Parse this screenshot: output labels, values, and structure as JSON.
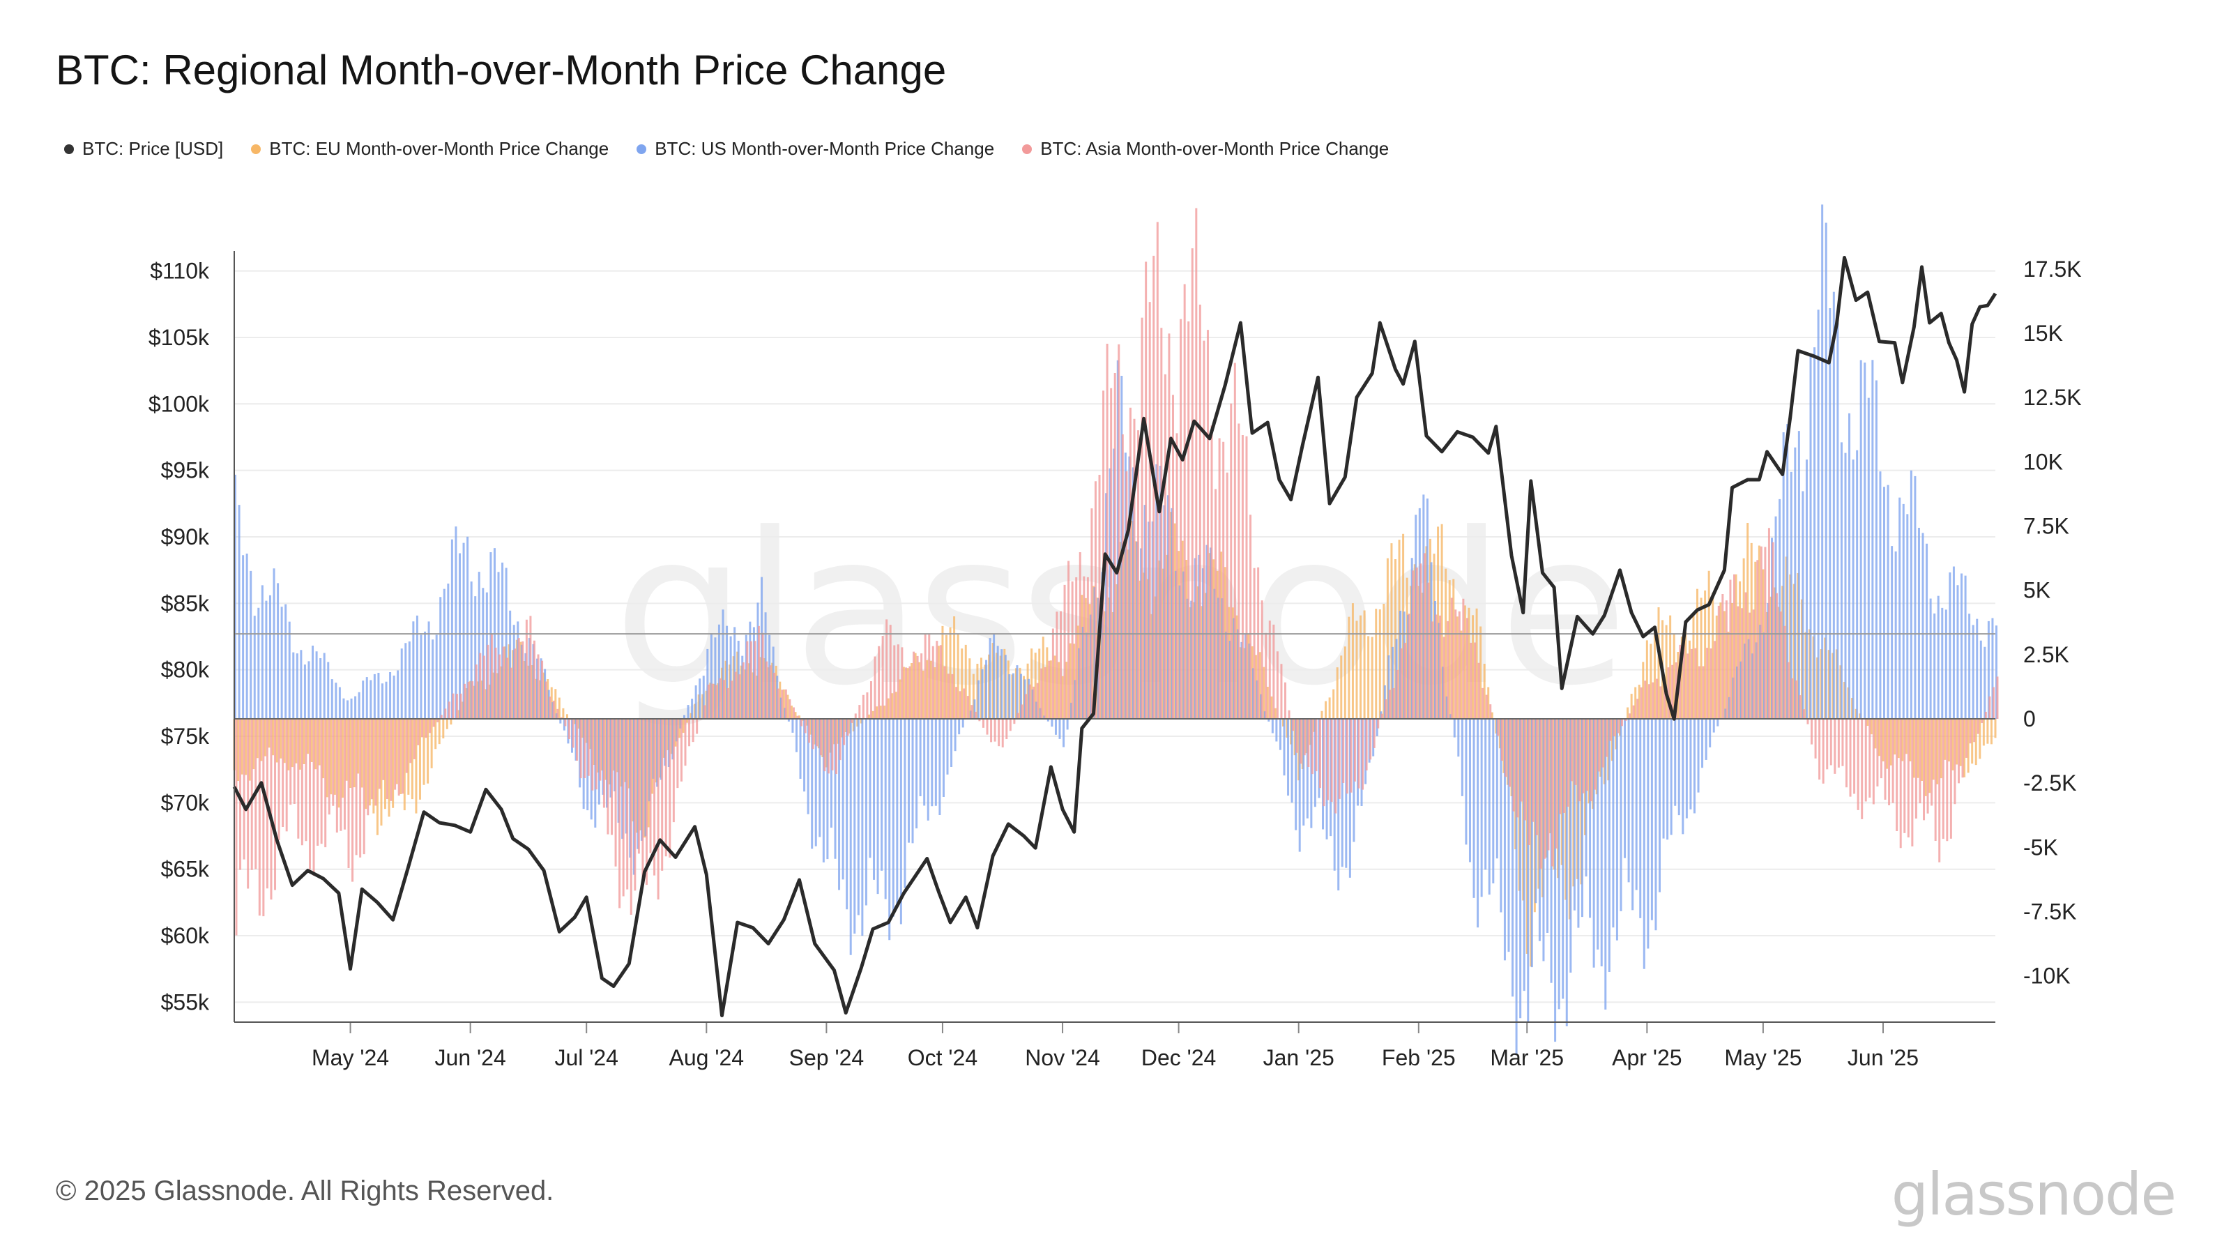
{
  "title": "BTC: Regional Month-over-Month Price Change",
  "legend": [
    {
      "label": "BTC: Price [USD]",
      "color": "#333333"
    },
    {
      "label": "BTC: EU Month-over-Month Price Change",
      "color": "#f7b766"
    },
    {
      "label": "BTC: US Month-over-Month Price Change",
      "color": "#7fa5ef"
    },
    {
      "label": "BTC: Asia Month-over-Month Price Change",
      "color": "#f29a9a"
    }
  ],
  "footer": "© 2025 Glassnode. All Rights Reserved.",
  "brand": "glassnode",
  "watermark": "glassnode",
  "chart_data": {
    "type": "line",
    "x_start": "2024-04-01",
    "x_end": "2025-06-30",
    "xticks": [
      {
        "date": "2024-05-01",
        "label": "May '24"
      },
      {
        "date": "2024-06-01",
        "label": "Jun '24"
      },
      {
        "date": "2024-07-01",
        "label": "Jul '24"
      },
      {
        "date": "2024-08-01",
        "label": "Aug '24"
      },
      {
        "date": "2024-09-01",
        "label": "Sep '24"
      },
      {
        "date": "2024-10-01",
        "label": "Oct '24"
      },
      {
        "date": "2024-11-01",
        "label": "Nov '24"
      },
      {
        "date": "2024-12-01",
        "label": "Dec '24"
      },
      {
        "date": "2025-01-01",
        "label": "Jan '25"
      },
      {
        "date": "2025-02-01",
        "label": "Feb '25"
      },
      {
        "date": "2025-03-01",
        "label": "Mar '25"
      },
      {
        "date": "2025-04-01",
        "label": "Apr '25"
      },
      {
        "date": "2025-05-01",
        "label": "May '25"
      },
      {
        "date": "2025-06-01",
        "label": "Jun '25"
      }
    ],
    "y_left": {
      "ticks": [
        55000,
        60000,
        65000,
        70000,
        75000,
        80000,
        85000,
        90000,
        95000,
        100000,
        105000,
        110000
      ],
      "labels": [
        "$55k",
        "$60k",
        "$65k",
        "$70k",
        "$75k",
        "$80k",
        "$85k",
        "$90k",
        "$95k",
        "$100k",
        "$105k",
        "$110k"
      ],
      "ylim": [
        53500,
        111500
      ]
    },
    "y_right": {
      "ticks": [
        -10000,
        -7500,
        -5000,
        -2500,
        0,
        2500,
        5000,
        7500,
        10000,
        12500,
        15000,
        17500
      ],
      "labels": [
        "-10K",
        "-7.5K",
        "-5K",
        "-2.5K",
        "0",
        "2.5K",
        "5K",
        "7.5K",
        "10K",
        "12.5K",
        "15K",
        "17.5K"
      ],
      "ylim": [
        -11800,
        18200
      ]
    },
    "reference_line_left": 82700,
    "price": [
      [
        "2024-04-01",
        71200
      ],
      [
        "2024-04-04",
        69500
      ],
      [
        "2024-04-08",
        71500
      ],
      [
        "2024-04-12",
        67200
      ],
      [
        "2024-04-16",
        63800
      ],
      [
        "2024-04-20",
        64900
      ],
      [
        "2024-04-24",
        64300
      ],
      [
        "2024-04-28",
        63200
      ],
      [
        "2024-05-01",
        57500
      ],
      [
        "2024-05-04",
        63500
      ],
      [
        "2024-05-08",
        62500
      ],
      [
        "2024-05-12",
        61200
      ],
      [
        "2024-05-16",
        65200
      ],
      [
        "2024-05-20",
        69300
      ],
      [
        "2024-05-24",
        68500
      ],
      [
        "2024-05-28",
        68300
      ],
      [
        "2024-06-01",
        67800
      ],
      [
        "2024-06-05",
        71000
      ],
      [
        "2024-06-09",
        69500
      ],
      [
        "2024-06-12",
        67300
      ],
      [
        "2024-06-16",
        66500
      ],
      [
        "2024-06-20",
        64900
      ],
      [
        "2024-06-24",
        60300
      ],
      [
        "2024-06-28",
        61400
      ],
      [
        "2024-07-01",
        62900
      ],
      [
        "2024-07-05",
        56800
      ],
      [
        "2024-07-08",
        56200
      ],
      [
        "2024-07-12",
        57900
      ],
      [
        "2024-07-16",
        64800
      ],
      [
        "2024-07-20",
        67200
      ],
      [
        "2024-07-24",
        65900
      ],
      [
        "2024-07-29",
        68200
      ],
      [
        "2024-08-01",
        64600
      ],
      [
        "2024-08-05",
        54000
      ],
      [
        "2024-08-09",
        61000
      ],
      [
        "2024-08-13",
        60600
      ],
      [
        "2024-08-17",
        59400
      ],
      [
        "2024-08-21",
        61200
      ],
      [
        "2024-08-25",
        64200
      ],
      [
        "2024-08-29",
        59400
      ],
      [
        "2024-09-03",
        57400
      ],
      [
        "2024-09-06",
        54200
      ],
      [
        "2024-09-10",
        57600
      ],
      [
        "2024-09-13",
        60500
      ],
      [
        "2024-09-17",
        61000
      ],
      [
        "2024-09-21",
        63200
      ],
      [
        "2024-09-27",
        65800
      ],
      [
        "2024-09-30",
        63300
      ],
      [
        "2024-10-03",
        61000
      ],
      [
        "2024-10-07",
        62900
      ],
      [
        "2024-10-10",
        60600
      ],
      [
        "2024-10-14",
        66000
      ],
      [
        "2024-10-18",
        68400
      ],
      [
        "2024-10-22",
        67500
      ],
      [
        "2024-10-25",
        66600
      ],
      [
        "2024-10-29",
        72700
      ],
      [
        "2024-11-01",
        69500
      ],
      [
        "2024-11-04",
        67800
      ],
      [
        "2024-11-06",
        75600
      ],
      [
        "2024-11-09",
        76700
      ],
      [
        "2024-11-12",
        88700
      ],
      [
        "2024-11-15",
        87300
      ],
      [
        "2024-11-18",
        90500
      ],
      [
        "2024-11-22",
        98900
      ],
      [
        "2024-11-26",
        91900
      ],
      [
        "2024-11-29",
        97400
      ],
      [
        "2024-12-02",
        95800
      ],
      [
        "2024-12-05",
        98700
      ],
      [
        "2024-12-09",
        97400
      ],
      [
        "2024-12-13",
        101400
      ],
      [
        "2024-12-17",
        106100
      ],
      [
        "2024-12-20",
        97800
      ],
      [
        "2024-12-24",
        98600
      ],
      [
        "2024-12-27",
        94300
      ],
      [
        "2024-12-30",
        92800
      ],
      [
        "2025-01-02",
        96900
      ],
      [
        "2025-01-06",
        102000
      ],
      [
        "2025-01-09",
        92500
      ],
      [
        "2025-01-13",
        94500
      ],
      [
        "2025-01-16",
        100500
      ],
      [
        "2025-01-20",
        102300
      ],
      [
        "2025-01-22",
        106100
      ],
      [
        "2025-01-26",
        102600
      ],
      [
        "2025-01-28",
        101500
      ],
      [
        "2025-01-31",
        104700
      ],
      [
        "2025-02-03",
        97600
      ],
      [
        "2025-02-07",
        96400
      ],
      [
        "2025-02-11",
        97900
      ],
      [
        "2025-02-15",
        97500
      ],
      [
        "2025-02-19",
        96300
      ],
      [
        "2025-02-21",
        98300
      ],
      [
        "2025-02-25",
        88600
      ],
      [
        "2025-02-28",
        84300
      ],
      [
        "2025-03-02",
        94200
      ],
      [
        "2025-03-05",
        87300
      ],
      [
        "2025-03-08",
        86200
      ],
      [
        "2025-03-10",
        78600
      ],
      [
        "2025-03-14",
        84000
      ],
      [
        "2025-03-18",
        82700
      ],
      [
        "2025-03-21",
        84100
      ],
      [
        "2025-03-25",
        87500
      ],
      [
        "2025-03-28",
        84300
      ],
      [
        "2025-03-31",
        82500
      ],
      [
        "2025-04-03",
        83200
      ],
      [
        "2025-04-06",
        78200
      ],
      [
        "2025-04-08",
        76300
      ],
      [
        "2025-04-11",
        83600
      ],
      [
        "2025-04-14",
        84500
      ],
      [
        "2025-04-17",
        84900
      ],
      [
        "2025-04-21",
        87500
      ],
      [
        "2025-04-23",
        93700
      ],
      [
        "2025-04-27",
        94300
      ],
      [
        "2025-04-30",
        94300
      ],
      [
        "2025-05-02",
        96400
      ],
      [
        "2025-05-06",
        94700
      ],
      [
        "2025-05-08",
        99000
      ],
      [
        "2025-05-10",
        104000
      ],
      [
        "2025-05-14",
        103600
      ],
      [
        "2025-05-18",
        103100
      ],
      [
        "2025-05-20",
        106000
      ],
      [
        "2025-05-22",
        111000
      ],
      [
        "2025-05-25",
        107800
      ],
      [
        "2025-05-28",
        108400
      ],
      [
        "2025-05-31",
        104700
      ],
      [
        "2025-06-04",
        104600
      ],
      [
        "2025-06-06",
        101600
      ],
      [
        "2025-06-09",
        105800
      ],
      [
        "2025-06-11",
        110300
      ],
      [
        "2025-06-13",
        106100
      ],
      [
        "2025-06-16",
        106800
      ],
      [
        "2025-06-18",
        104600
      ],
      [
        "2025-06-20",
        103300
      ],
      [
        "2025-06-22",
        100900
      ],
      [
        "2025-06-24",
        106000
      ],
      [
        "2025-06-26",
        107300
      ],
      [
        "2025-06-28",
        107400
      ],
      [
        "2025-06-30",
        108300
      ]
    ],
    "series": [
      {
        "name": "BTC: EU Month-over-Month Price Change",
        "color": "#f7b766",
        "points": [
          [
            "2024-04-01",
            -2000
          ],
          [
            "2024-04-15",
            -1500
          ],
          [
            "2024-05-01",
            -3000
          ],
          [
            "2024-05-15",
            -3800
          ],
          [
            "2024-06-01",
            1200
          ],
          [
            "2024-06-15",
            2800
          ],
          [
            "2024-07-01",
            -1000
          ],
          [
            "2024-07-15",
            -4000
          ],
          [
            "2024-08-01",
            1500
          ],
          [
            "2024-08-15",
            2500
          ],
          [
            "2024-09-01",
            -1500
          ],
          [
            "2024-09-15",
            600
          ],
          [
            "2024-10-01",
            3200
          ],
          [
            "2024-10-15",
            2200
          ],
          [
            "2024-11-01",
            2500
          ],
          [
            "2024-11-15",
            5800
          ],
          [
            "2024-12-01",
            6200
          ],
          [
            "2024-12-15",
            4800
          ],
          [
            "2025-01-01",
            -2000
          ],
          [
            "2025-01-15",
            3500
          ],
          [
            "2025-02-01",
            6800
          ],
          [
            "2025-02-15",
            4500
          ],
          [
            "2025-03-01",
            -7500
          ],
          [
            "2025-03-15",
            -5500
          ],
          [
            "2025-04-01",
            3000
          ],
          [
            "2025-04-15",
            4200
          ],
          [
            "2025-05-01",
            6200
          ],
          [
            "2025-05-15",
            3500
          ],
          [
            "2025-06-01",
            -1500
          ],
          [
            "2025-06-15",
            -2500
          ],
          [
            "2025-06-30",
            -1000
          ]
        ]
      },
      {
        "name": "BTC: US Month-over-Month Price Change",
        "color": "#7fa5ef",
        "points": [
          [
            "2024-04-01",
            7200
          ],
          [
            "2024-04-15",
            3500
          ],
          [
            "2024-05-01",
            800
          ],
          [
            "2024-05-15",
            2500
          ],
          [
            "2024-06-01",
            6800
          ],
          [
            "2024-06-15",
            3600
          ],
          [
            "2024-07-01",
            -3200
          ],
          [
            "2024-07-15",
            -4800
          ],
          [
            "2024-08-01",
            2800
          ],
          [
            "2024-08-15",
            4200
          ],
          [
            "2024-09-01",
            -6300
          ],
          [
            "2024-09-15",
            -7800
          ],
          [
            "2024-10-01",
            -2500
          ],
          [
            "2024-10-15",
            3300
          ],
          [
            "2024-11-01",
            -1200
          ],
          [
            "2024-11-15",
            10800
          ],
          [
            "2024-12-01",
            6500
          ],
          [
            "2024-12-15",
            4200
          ],
          [
            "2025-01-01",
            -4000
          ],
          [
            "2025-01-15",
            -5500
          ],
          [
            "2025-02-01",
            8500
          ],
          [
            "2025-02-15",
            -6000
          ],
          [
            "2025-03-01",
            -10800
          ],
          [
            "2025-03-15",
            -9000
          ],
          [
            "2025-04-01",
            -7500
          ],
          [
            "2025-04-15",
            -2000
          ],
          [
            "2025-05-01",
            4500
          ],
          [
            "2025-05-15",
            16000
          ],
          [
            "2025-06-01",
            10000
          ],
          [
            "2025-06-15",
            5300
          ],
          [
            "2025-06-30",
            3600
          ]
        ]
      },
      {
        "name": "BTC: Asia Month-over-Month Price Change",
        "color": "#f29a9a",
        "points": [
          [
            "2024-04-01",
            -8000
          ],
          [
            "2024-04-15",
            -4500
          ],
          [
            "2024-05-01",
            -5000
          ],
          [
            "2024-05-15",
            -2000
          ],
          [
            "2024-06-01",
            2000
          ],
          [
            "2024-06-15",
            3400
          ],
          [
            "2024-07-01",
            -2500
          ],
          [
            "2024-07-15",
            -7800
          ],
          [
            "2024-08-01",
            1000
          ],
          [
            "2024-08-15",
            3000
          ],
          [
            "2024-09-01",
            -2500
          ],
          [
            "2024-09-15",
            3000
          ],
          [
            "2024-10-01",
            2500
          ],
          [
            "2024-10-15",
            -1500
          ],
          [
            "2024-11-01",
            4200
          ],
          [
            "2024-11-15",
            13000
          ],
          [
            "2024-12-01",
            16500
          ],
          [
            "2024-12-15",
            11000
          ],
          [
            "2025-01-01",
            -2000
          ],
          [
            "2025-01-15",
            -3500
          ],
          [
            "2025-02-01",
            5500
          ],
          [
            "2025-02-15",
            3000
          ],
          [
            "2025-03-01",
            -5500
          ],
          [
            "2025-03-15",
            -3000
          ],
          [
            "2025-04-01",
            1500
          ],
          [
            "2025-04-15",
            2800
          ],
          [
            "2025-05-01",
            6500
          ],
          [
            "2025-05-15",
            -2000
          ],
          [
            "2025-06-01",
            -3500
          ],
          [
            "2025-06-15",
            -4800
          ],
          [
            "2025-06-30",
            1500
          ]
        ]
      }
    ]
  }
}
